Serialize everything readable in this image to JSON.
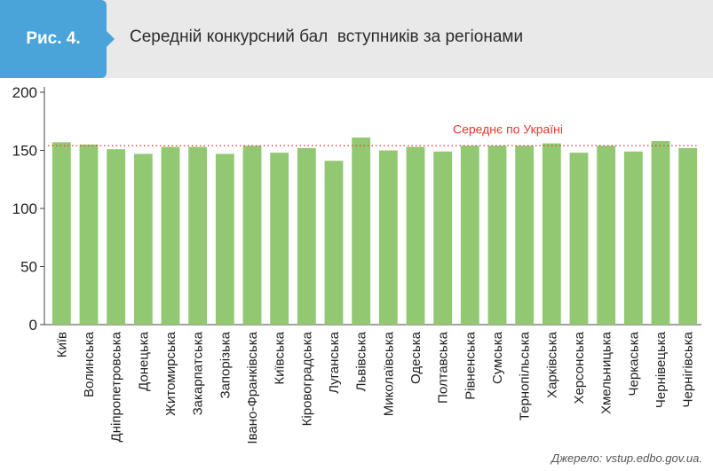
{
  "header": {
    "figure_label": "Рис. 4.",
    "title": "Середній конкурсний бал  вступників за регіонами"
  },
  "source": "Джерело: vstup.edbo.gov.ua.",
  "colors": {
    "bar": "#93c873",
    "average_line": "#e03a2f",
    "badge": "#4aa3d9"
  },
  "chart_data": {
    "type": "bar",
    "title": "Середній конкурсний бал  вступників за регіонами",
    "categories": [
      "Київ",
      "Волинська",
      "Дніпропетровська",
      "Донецька",
      "Житомирська",
      "Закарпатська",
      "Запорізька",
      "Івано-Франківська",
      "Київська",
      "Кіровоградська",
      "Луганська",
      "Львівська",
      "Миколаївська",
      "Одеська",
      "Полтавська",
      "Рівненська",
      "Сумська",
      "Тернопільська",
      "Харківська",
      "Херсонська",
      "Хмельницька",
      "Черкаська",
      "Чернівецька",
      "Чернігівська"
    ],
    "values": [
      157,
      155,
      151,
      147,
      153,
      153,
      147,
      154,
      148,
      152,
      141,
      161,
      150,
      153,
      149,
      154,
      154,
      154,
      156,
      148,
      154,
      149,
      158,
      152
    ],
    "ylim": [
      0,
      200
    ],
    "yticks": [
      0,
      50,
      100,
      150,
      200
    ],
    "average": {
      "label": "Середнє по Україні",
      "value": 154
    },
    "grid": false,
    "legend": "none"
  }
}
